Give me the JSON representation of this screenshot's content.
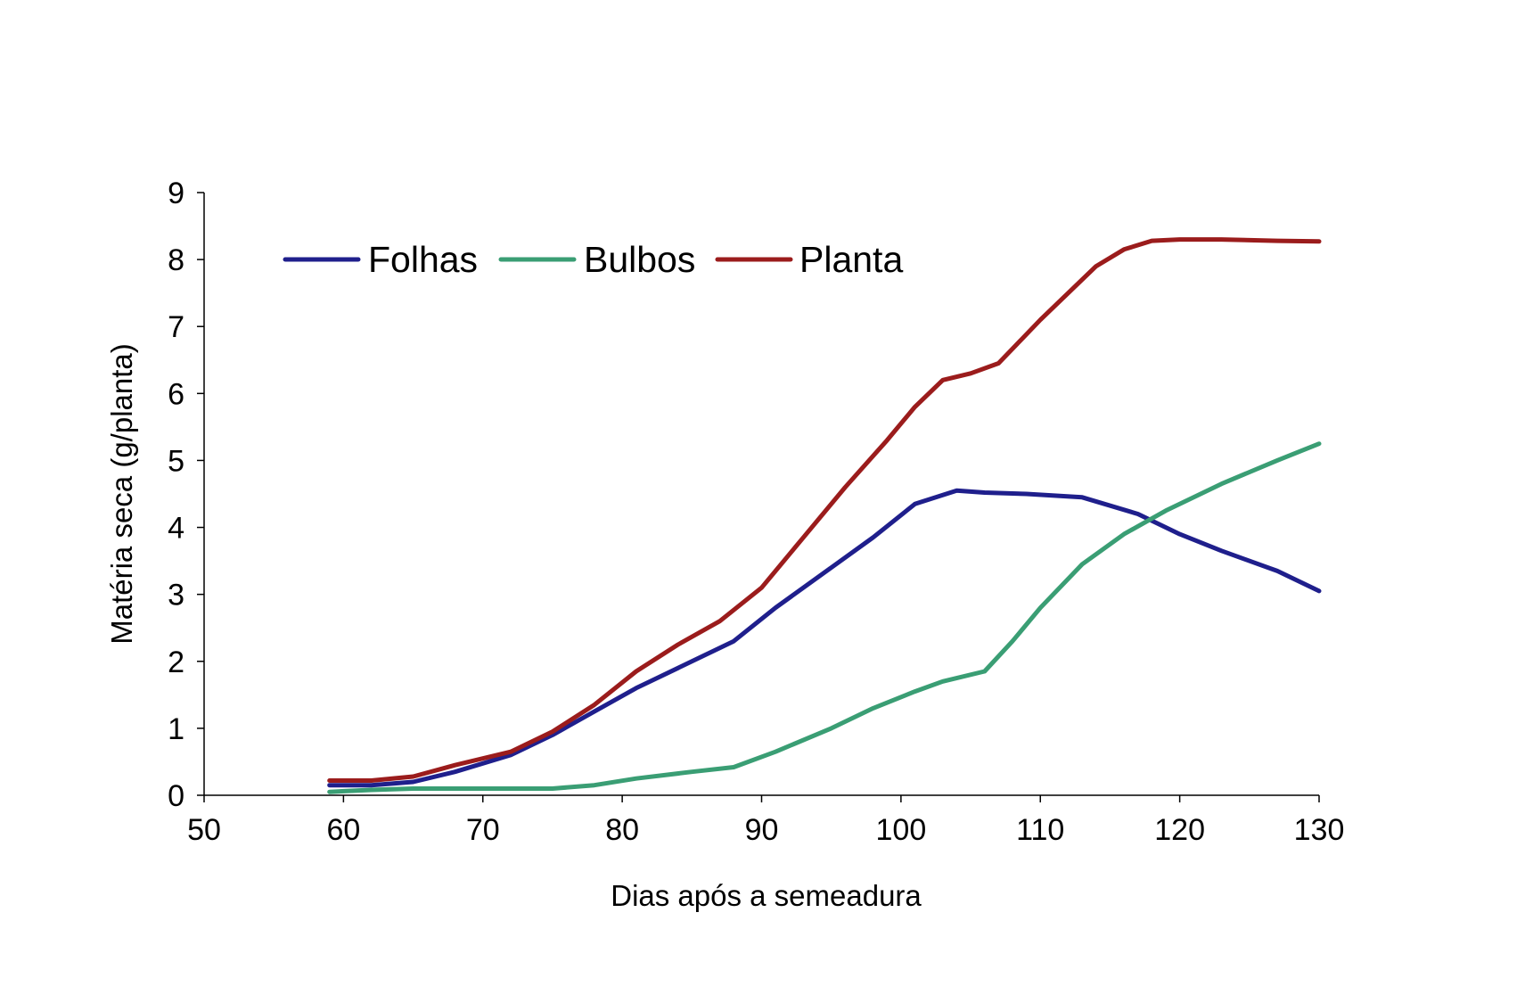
{
  "chart_data": {
    "type": "line",
    "title": "",
    "xlabel": "Dias após a semeadura",
    "ylabel": "Matéria seca (g/planta)",
    "xlim": [
      50,
      130
    ],
    "ylim": [
      0,
      9
    ],
    "xticks": [
      50,
      60,
      70,
      80,
      90,
      100,
      110,
      120,
      130
    ],
    "yticks": [
      0,
      1,
      2,
      3,
      4,
      5,
      6,
      7,
      8,
      9
    ],
    "grid": false,
    "legend_position": "top-left",
    "series": [
      {
        "name": "Folhas",
        "color": "#1f1f8c",
        "x": [
          59,
          62,
          65,
          68,
          72,
          75,
          78,
          81,
          85,
          88,
          91,
          95,
          98,
          101,
          104,
          106,
          109,
          113,
          117,
          120,
          123,
          127,
          130
        ],
        "y": [
          0.15,
          0.15,
          0.2,
          0.35,
          0.6,
          0.9,
          1.25,
          1.6,
          2.0,
          2.3,
          2.8,
          3.4,
          3.85,
          4.35,
          4.55,
          4.52,
          4.5,
          4.45,
          4.2,
          3.9,
          3.65,
          3.35,
          3.05
        ]
      },
      {
        "name": "Bulbos",
        "color": "#3a9e74",
        "x": [
          59,
          62,
          65,
          70,
          75,
          78,
          81,
          85,
          88,
          91,
          95,
          98,
          101,
          103,
          106,
          108,
          110,
          113,
          116,
          119,
          123,
          127,
          130
        ],
        "y": [
          0.05,
          0.08,
          0.1,
          0.1,
          0.1,
          0.15,
          0.25,
          0.35,
          0.42,
          0.65,
          1.0,
          1.3,
          1.55,
          1.7,
          1.85,
          2.3,
          2.8,
          3.45,
          3.9,
          4.25,
          4.65,
          5.0,
          5.25
        ]
      },
      {
        "name": "Planta",
        "color": "#9b1c1c",
        "x": [
          59,
          62,
          65,
          68,
          72,
          75,
          78,
          81,
          84,
          87,
          90,
          93,
          96,
          99,
          101,
          103,
          105,
          107,
          110,
          114,
          116,
          118,
          120,
          123,
          127,
          130
        ],
        "y": [
          0.22,
          0.22,
          0.28,
          0.45,
          0.65,
          0.95,
          1.35,
          1.85,
          2.25,
          2.6,
          3.1,
          3.85,
          4.6,
          5.3,
          5.8,
          6.2,
          6.3,
          6.45,
          7.1,
          7.9,
          8.15,
          8.28,
          8.3,
          8.3,
          8.28,
          8.27
        ]
      }
    ]
  }
}
